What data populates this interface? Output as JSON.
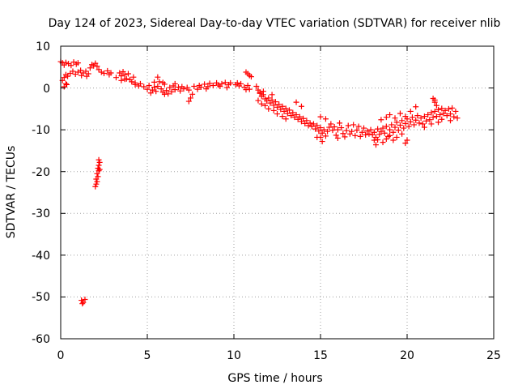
{
  "chart_data": {
    "type": "scatter",
    "title": "Day 124 of 2023, Sidereal Day-to-day VTEC variation (SDTVAR) for receiver nlib",
    "xlabel": "GPS time / hours",
    "ylabel": "SDTVAR / TECUs",
    "xlim": [
      0,
      25
    ],
    "ylim": [
      -60,
      10
    ],
    "xticks": [
      "0",
      "5",
      "10",
      "15",
      "20",
      "25"
    ],
    "yticks": [
      "10",
      "0",
      "-10",
      "-20",
      "-30",
      "-40",
      "-50",
      "-60"
    ],
    "grid": true,
    "marker": "+",
    "series_color": "#ff0000",
    "series": [
      {
        "name": "SDTVAR",
        "points": [
          [
            0.0,
            6.3
          ],
          [
            0.1,
            6.0
          ],
          [
            0.2,
            5.5
          ],
          [
            0.3,
            6.1
          ],
          [
            0.45,
            5.8
          ],
          [
            0.6,
            5.4
          ],
          [
            0.75,
            6.2
          ],
          [
            0.9,
            5.7
          ],
          [
            1.0,
            6.0
          ],
          [
            0.1,
            1.8
          ],
          [
            0.2,
            2.5
          ],
          [
            0.3,
            3.2
          ],
          [
            0.35,
            0.8
          ],
          [
            0.4,
            2.8
          ],
          [
            0.55,
            3.5
          ],
          [
            0.7,
            4.0
          ],
          [
            0.85,
            3.3
          ],
          [
            1.0,
            3.8
          ],
          [
            1.15,
            4.2
          ],
          [
            1.3,
            3.6
          ],
          [
            1.45,
            4.0
          ],
          [
            1.6,
            3.4
          ],
          [
            0.2,
            0.3
          ],
          [
            0.3,
            1.0
          ],
          [
            1.7,
            4.8
          ],
          [
            1.8,
            5.6
          ],
          [
            1.9,
            5.3
          ],
          [
            2.0,
            5.9
          ],
          [
            2.1,
            5.2
          ],
          [
            2.2,
            4.4
          ],
          [
            2.35,
            3.8
          ],
          [
            2.5,
            3.5
          ],
          [
            2.7,
            4.1
          ],
          [
            2.8,
            3.2
          ],
          [
            2.9,
            3.6
          ],
          [
            1.2,
            3.0
          ],
          [
            1.5,
            2.8
          ],
          [
            3.2,
            2.5
          ],
          [
            3.4,
            3.6
          ],
          [
            3.5,
            2.9
          ],
          [
            3.6,
            3.9
          ],
          [
            3.7,
            3.2
          ],
          [
            3.8,
            2.2
          ],
          [
            3.9,
            3.4
          ],
          [
            4.0,
            2.0
          ],
          [
            4.1,
            1.5
          ],
          [
            4.2,
            2.6
          ],
          [
            3.5,
            1.8
          ],
          [
            3.7,
            2.1
          ],
          [
            4.3,
            1.2
          ],
          [
            4.3,
            0.8
          ],
          [
            4.5,
            0.5
          ],
          [
            4.6,
            1.0
          ],
          [
            4.8,
            0.3
          ],
          [
            5.0,
            -0.3
          ],
          [
            5.1,
            0.6
          ],
          [
            5.3,
            -0.5
          ],
          [
            5.4,
            0.2
          ],
          [
            5.5,
            -0.8
          ],
          [
            5.6,
            0.4
          ],
          [
            5.8,
            -0.2
          ],
          [
            5.9,
            -1.0
          ],
          [
            6.0,
            0.9
          ],
          [
            6.1,
            -0.6
          ],
          [
            6.3,
            0.1
          ],
          [
            6.4,
            -0.9
          ],
          [
            6.5,
            0.5
          ],
          [
            6.6,
            -0.4
          ],
          [
            6.8,
            0.2
          ],
          [
            6.9,
            -0.7
          ],
          [
            7.0,
            0.3
          ],
          [
            7.1,
            -0.2
          ],
          [
            7.3,
            0.1
          ],
          [
            7.4,
            -0.5
          ],
          [
            5.6,
            2.6
          ],
          [
            5.7,
            1.5
          ],
          [
            5.2,
            -1.2
          ],
          [
            5.9,
            1.3
          ],
          [
            6.2,
            -1.4
          ],
          [
            6.6,
            1.0
          ],
          [
            5.4,
            1.4
          ],
          [
            6.0,
            -1.5
          ],
          [
            7.5,
            -2.4
          ],
          [
            7.4,
            -3.2
          ],
          [
            7.6,
            -1.5
          ],
          [
            7.7,
            0.4
          ],
          [
            7.9,
            -0.3
          ],
          [
            8.0,
            0.6
          ],
          [
            8.1,
            0.2
          ],
          [
            8.3,
            0.9
          ],
          [
            8.5,
            0.3
          ],
          [
            8.6,
            1.1
          ],
          [
            8.8,
            0.6
          ],
          [
            9.0,
            1.2
          ],
          [
            9.1,
            0.7
          ],
          [
            9.3,
            1.0
          ],
          [
            9.5,
            1.3
          ],
          [
            9.7,
            0.8
          ],
          [
            9.8,
            1.2
          ],
          [
            8.4,
            -0.2
          ],
          [
            9.6,
            0.1
          ],
          [
            9.2,
            0.4
          ],
          [
            10.1,
            0.8
          ],
          [
            10.3,
            0.5
          ],
          [
            10.4,
            1.0
          ],
          [
            10.6,
            0.2
          ],
          [
            10.8,
            0.6
          ],
          [
            10.9,
            -0.3
          ],
          [
            10.2,
            1.2
          ],
          [
            10.7,
            -0.4
          ],
          [
            10.7,
            3.8
          ],
          [
            10.8,
            3.4
          ],
          [
            10.9,
            3.0
          ],
          [
            11.0,
            2.7
          ],
          [
            11.3,
            0.4
          ],
          [
            11.4,
            -0.5
          ],
          [
            11.5,
            -1.3
          ],
          [
            11.6,
            -2.0
          ],
          [
            11.7,
            -1.6
          ],
          [
            11.8,
            -2.6
          ],
          [
            11.9,
            -3.1
          ],
          [
            12.0,
            -2.4
          ],
          [
            12.1,
            -3.6
          ],
          [
            12.2,
            -2.9
          ],
          [
            12.3,
            -4.1
          ],
          [
            12.4,
            -3.3
          ],
          [
            12.5,
            -4.6
          ],
          [
            12.6,
            -3.9
          ],
          [
            12.7,
            -5.1
          ],
          [
            12.8,
            -4.4
          ],
          [
            12.9,
            -5.6
          ],
          [
            13.0,
            -4.9
          ],
          [
            13.1,
            -6.1
          ],
          [
            13.2,
            -5.3
          ],
          [
            13.3,
            -6.6
          ],
          [
            13.4,
            -5.9
          ],
          [
            13.5,
            -7.0
          ],
          [
            13.6,
            -6.4
          ],
          [
            13.7,
            -7.5
          ],
          [
            13.8,
            -6.9
          ],
          [
            13.9,
            -8.0
          ],
          [
            14.0,
            -7.3
          ],
          [
            14.1,
            -8.5
          ],
          [
            14.2,
            -7.8
          ],
          [
            14.3,
            -9.0
          ],
          [
            14.4,
            -8.4
          ],
          [
            11.4,
            -3.0
          ],
          [
            11.6,
            -3.8
          ],
          [
            11.8,
            -4.2
          ],
          [
            12.0,
            -5.0
          ],
          [
            12.3,
            -5.4
          ],
          [
            12.5,
            -6.2
          ],
          [
            12.8,
            -6.8
          ],
          [
            13.0,
            -7.4
          ],
          [
            11.5,
            -1.0
          ],
          [
            11.7,
            -0.8
          ],
          [
            12.2,
            -1.6
          ],
          [
            13.6,
            -3.4
          ],
          [
            13.9,
            -4.4
          ],
          [
            14.5,
            -9.2
          ],
          [
            14.6,
            -8.6
          ],
          [
            14.7,
            -9.8
          ],
          [
            14.8,
            -9.0
          ],
          [
            14.9,
            -10.3
          ],
          [
            15.0,
            -9.5
          ],
          [
            15.1,
            -10.8
          ],
          [
            15.2,
            -10.0
          ],
          [
            15.1,
            -12.8
          ],
          [
            15.0,
            -11.8
          ],
          [
            15.3,
            -11.5
          ],
          [
            15.4,
            -10.4
          ],
          [
            15.5,
            -9.4
          ],
          [
            15.6,
            -8.6
          ],
          [
            15.7,
            -10.1
          ],
          [
            15.8,
            -9.3
          ],
          [
            15.9,
            -11.3
          ],
          [
            16.0,
            -10.0
          ],
          [
            16.1,
            -8.4
          ],
          [
            16.2,
            -9.5
          ],
          [
            16.3,
            -10.9
          ],
          [
            16.4,
            -11.7
          ],
          [
            16.5,
            -10.2
          ],
          [
            16.6,
            -9.0
          ],
          [
            16.7,
            -11.0
          ],
          [
            16.8,
            -10.4
          ],
          [
            16.9,
            -8.8
          ],
          [
            17.0,
            -11.4
          ],
          [
            17.1,
            -10.1
          ],
          [
            17.2,
            -9.2
          ],
          [
            17.3,
            -11.6
          ],
          [
            17.4,
            -10.6
          ],
          [
            17.5,
            -9.6
          ],
          [
            17.6,
            -11.2
          ],
          [
            17.7,
            -10.3
          ],
          [
            17.8,
            -11.0
          ],
          [
            15.0,
            -6.9
          ],
          [
            15.3,
            -7.4
          ],
          [
            14.8,
            -11.8
          ],
          [
            16.0,
            -12.0
          ],
          [
            17.9,
            -10.0
          ],
          [
            18.0,
            -11.2
          ],
          [
            18.1,
            -12.5
          ],
          [
            18.2,
            -13.6
          ],
          [
            18.1,
            -10.6
          ],
          [
            18.2,
            -11.8
          ],
          [
            18.3,
            -12.4
          ],
          [
            18.3,
            -9.8
          ],
          [
            18.4,
            -11.1
          ],
          [
            18.5,
            -10.4
          ],
          [
            18.6,
            -9.6
          ],
          [
            18.7,
            -10.8
          ],
          [
            18.8,
            -9.2
          ],
          [
            18.9,
            -11.6
          ],
          [
            19.0,
            -10.0
          ],
          [
            19.1,
            -8.8
          ],
          [
            19.2,
            -10.6
          ],
          [
            19.3,
            -9.4
          ],
          [
            19.4,
            -8.2
          ],
          [
            19.5,
            -10.1
          ],
          [
            19.6,
            -8.9
          ],
          [
            19.7,
            -7.8
          ],
          [
            19.8,
            -9.6
          ],
          [
            19.9,
            -8.5
          ],
          [
            20.0,
            -7.4
          ],
          [
            20.1,
            -9.2
          ],
          [
            20.2,
            -8.1
          ],
          [
            20.3,
            -7.0
          ],
          [
            20.4,
            -8.8
          ],
          [
            20.5,
            -7.7
          ],
          [
            20.6,
            -6.6
          ],
          [
            20.7,
            -8.4
          ],
          [
            18.6,
            -13.0
          ],
          [
            18.8,
            -12.2
          ],
          [
            19.0,
            -11.4
          ],
          [
            19.2,
            -12.5
          ],
          [
            19.4,
            -11.8
          ],
          [
            19.7,
            -11.0
          ],
          [
            20.0,
            -12.5
          ],
          [
            19.9,
            -13.2
          ],
          [
            18.5,
            -7.6
          ],
          [
            18.8,
            -7.0
          ],
          [
            19.0,
            -6.4
          ],
          [
            19.3,
            -7.2
          ],
          [
            19.6,
            -6.1
          ],
          [
            19.9,
            -6.8
          ],
          [
            20.2,
            -5.6
          ],
          [
            20.5,
            -4.5
          ],
          [
            20.8,
            -7.2
          ],
          [
            20.9,
            -8.6
          ],
          [
            21.0,
            -6.8
          ],
          [
            21.1,
            -7.9
          ],
          [
            21.2,
            -6.4
          ],
          [
            21.3,
            -7.6
          ],
          [
            21.4,
            -5.9
          ],
          [
            21.5,
            -7.0
          ],
          [
            21.6,
            -5.6
          ],
          [
            21.7,
            -6.8
          ],
          [
            21.8,
            -5.2
          ],
          [
            21.9,
            -6.4
          ],
          [
            22.0,
            -4.9
          ],
          [
            22.1,
            -6.1
          ],
          [
            22.2,
            -5.4
          ],
          [
            22.3,
            -6.6
          ],
          [
            22.4,
            -5.0
          ],
          [
            22.5,
            -6.2
          ],
          [
            22.6,
            -4.8
          ],
          [
            22.7,
            -6.9
          ],
          [
            22.8,
            -5.6
          ],
          [
            22.9,
            -7.2
          ],
          [
            21.0,
            -9.4
          ],
          [
            21.4,
            -8.6
          ],
          [
            21.5,
            -2.5
          ],
          [
            21.6,
            -3.4
          ],
          [
            21.7,
            -4.2
          ],
          [
            21.6,
            -2.9
          ],
          [
            22.0,
            -7.5
          ],
          [
            22.5,
            -7.8
          ],
          [
            21.8,
            -8.2
          ],
          [
            2.2,
            -17.2
          ],
          [
            2.25,
            -17.8
          ],
          [
            2.2,
            -18.5
          ],
          [
            2.15,
            -19.2
          ],
          [
            2.2,
            -19.8
          ],
          [
            2.1,
            -20.5
          ],
          [
            2.15,
            -21.2
          ],
          [
            2.05,
            -21.8
          ],
          [
            2.1,
            -22.4
          ],
          [
            2.05,
            -23.0
          ],
          [
            2.0,
            -23.6
          ],
          [
            2.25,
            -19.5
          ],
          [
            1.2,
            -50.8
          ],
          [
            1.3,
            -51.3
          ],
          [
            1.4,
            -50.6
          ],
          [
            1.25,
            -51.6
          ]
        ]
      }
    ]
  }
}
